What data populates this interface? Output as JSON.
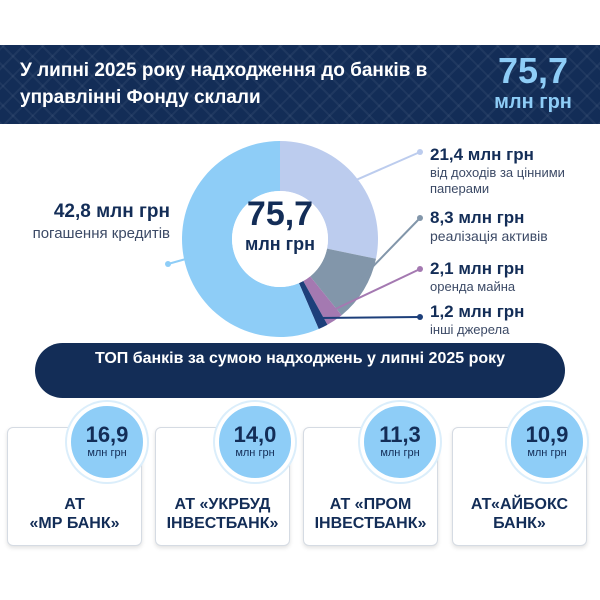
{
  "header": {
    "title": "У липні 2025 року надходження до банків в управлінні Фонду склали",
    "total_value": "75,7",
    "total_unit": "млн грн"
  },
  "center": {
    "value": "75,7",
    "unit": "млн грн"
  },
  "labels": {
    "loans": {
      "value": "42,8 млн грн",
      "desc": "погашення кредитів"
    },
    "securities": {
      "value": "21,4 млн грн",
      "desc": "від доходів за цінними паперами"
    },
    "assets": {
      "value": "8,3 млн грн",
      "desc": "реалізація активів"
    },
    "rent": {
      "value": "2,1 млн грн",
      "desc": "оренда майна"
    },
    "other": {
      "value": "1,2 млн грн",
      "desc": "інші джерела"
    }
  },
  "top_title": "ТОП банків за сумою надходжень у липні 2025 року",
  "banks": [
    {
      "value": "16,9",
      "unit": "млн грн",
      "name": "АТ\n«МР БАНК»"
    },
    {
      "value": "14,0",
      "unit": "млн грн",
      "name": "АТ «УКРБУД\nІНВЕСТБАНК»"
    },
    {
      "value": "11,3",
      "unit": "млн грн",
      "name": "АТ «ПРОМ\nІНВЕСТБАНК»"
    },
    {
      "value": "10,9",
      "unit": "млн грн",
      "name": "АТ«АЙБОКС\nБАНК»"
    }
  ],
  "colors": {
    "navy": "#132d57",
    "loans": "#8ecdf7",
    "securities": "#bcccee",
    "assets": "#8296aa",
    "rent": "#a479b1",
    "other": "#1d3f7a"
  },
  "chart_data": {
    "type": "pie",
    "title": "",
    "total": 75.7,
    "unit": "млн грн",
    "categories": [
      "погашення кредитів",
      "від доходів за цінними паперами",
      "реалізація активів",
      "оренда майна",
      "інші джерела"
    ],
    "values": [
      42.8,
      21.4,
      8.3,
      2.1,
      1.2
    ]
  }
}
